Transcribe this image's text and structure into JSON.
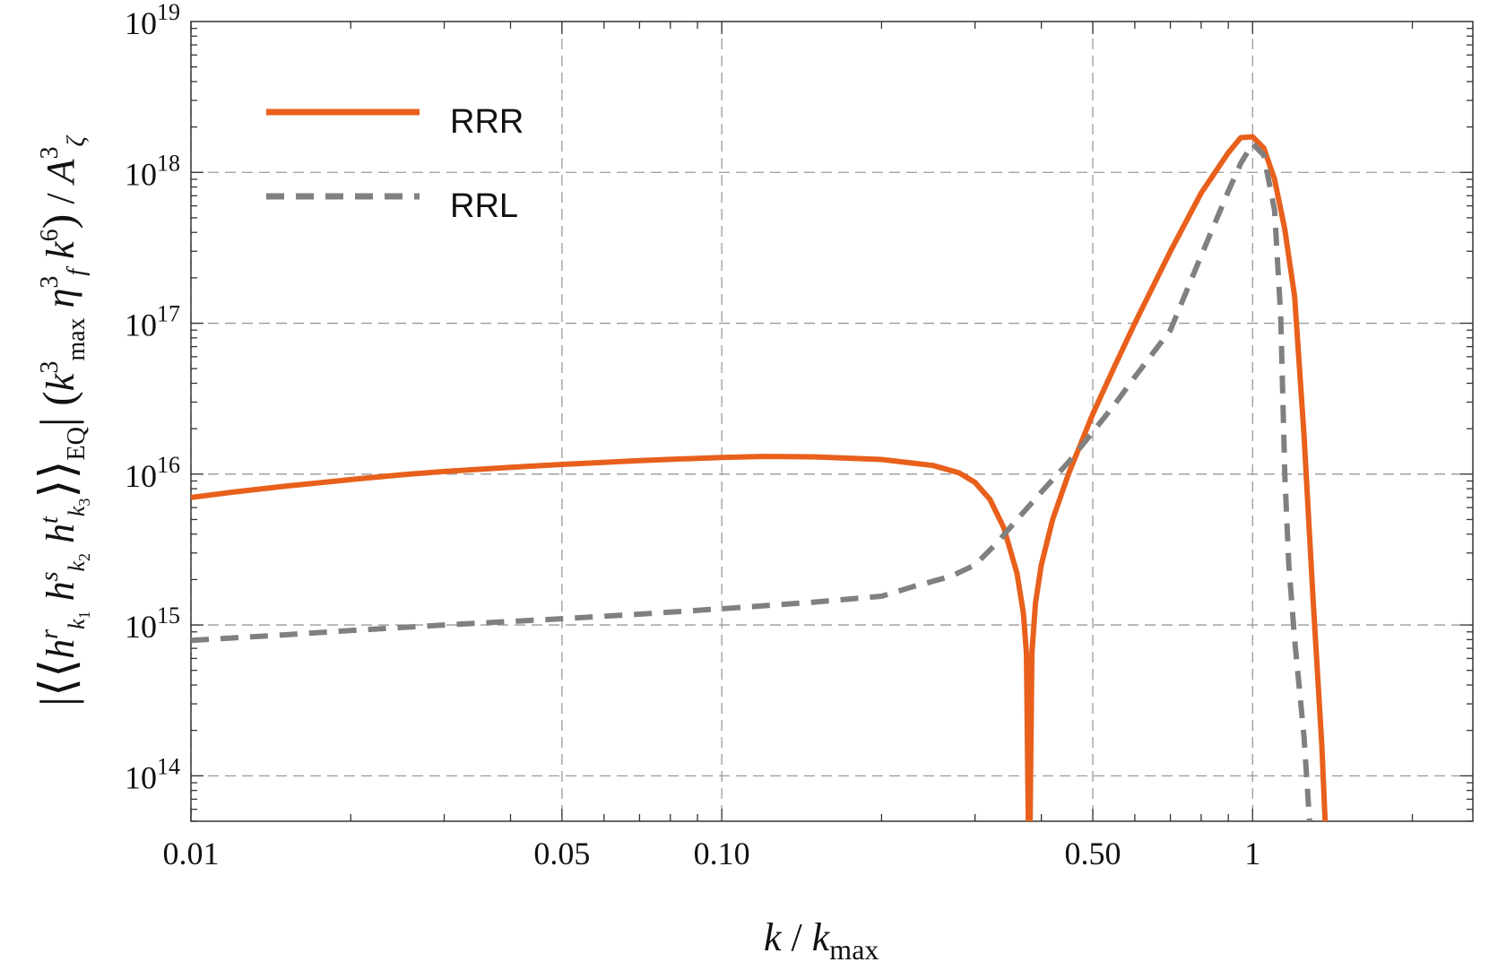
{
  "chart_data": {
    "type": "line",
    "xscale": "log",
    "yscale": "log",
    "xlim": [
      0.01,
      2.6
    ],
    "ylim": [
      50000000000000.0,
      1e+19
    ],
    "grid": true,
    "legend_position": "top-left",
    "xlabel": "k / k_max",
    "ylabel": "|⟨⟨h^r_{k1} h^s_{k2} h^t_{k3}⟩⟩_EQ| (k_max^3 η_f^3 k^6) / A_ζ^3",
    "x_ticks": [
      {
        "value": 0.01,
        "label": "0.01"
      },
      {
        "value": 0.05,
        "label": "0.05"
      },
      {
        "value": 0.1,
        "label": "0.10"
      },
      {
        "value": 0.5,
        "label": "0.50"
      },
      {
        "value": 1,
        "label": "1"
      }
    ],
    "y_ticks": [
      {
        "value": 100000000000000.0,
        "exponent": "14"
      },
      {
        "value": 1000000000000000.0,
        "exponent": "15"
      },
      {
        "value": 1e+16,
        "exponent": "16"
      },
      {
        "value": 1e+17,
        "exponent": "17"
      },
      {
        "value": 1e+18,
        "exponent": "18"
      },
      {
        "value": 1e+19,
        "exponent": "19"
      }
    ],
    "series": [
      {
        "name": "RRR",
        "color": "#e8601c",
        "style": "solid",
        "points": [
          [
            0.01,
            7000000000000000.0
          ],
          [
            0.012,
            7600000000000000.0
          ],
          [
            0.015,
            8300000000000000.0
          ],
          [
            0.02,
            9200000000000000.0
          ],
          [
            0.025,
            9900000000000000.0
          ],
          [
            0.03,
            1.04e+16
          ],
          [
            0.04,
            1.11e+16
          ],
          [
            0.05,
            1.16e+16
          ],
          [
            0.07,
            1.23e+16
          ],
          [
            0.1,
            1.29e+16
          ],
          [
            0.12,
            1.31e+16
          ],
          [
            0.15,
            1.3e+16
          ],
          [
            0.2,
            1.25e+16
          ],
          [
            0.25,
            1.14e+16
          ],
          [
            0.28,
            1.02e+16
          ],
          [
            0.3,
            8800000000000000.0
          ],
          [
            0.32,
            6800000000000000.0
          ],
          [
            0.34,
            4400000000000000.0
          ],
          [
            0.36,
            2200000000000000.0
          ],
          [
            0.37,
            1200000000000000.0
          ],
          [
            0.375,
            650000000000000.0
          ],
          [
            0.378,
            50000000000000.0
          ],
          [
            0.381,
            50000000000000.0
          ],
          [
            0.384,
            650000000000000.0
          ],
          [
            0.39,
            1400000000000000.0
          ],
          [
            0.4,
            2500000000000000.0
          ],
          [
            0.42,
            5000000000000000.0
          ],
          [
            0.45,
            1e+16
          ],
          [
            0.5,
            2.5e+16
          ],
          [
            0.55,
            5.2e+16
          ],
          [
            0.6,
            1e+17
          ],
          [
            0.7,
            3e+17
          ],
          [
            0.8,
            7.3e+17
          ],
          [
            0.9,
            1.35e+18
          ],
          [
            0.95,
            1.7e+18
          ],
          [
            1.0,
            1.72e+18
          ],
          [
            1.05,
            1.45e+18
          ],
          [
            1.1,
            9e+17
          ],
          [
            1.15,
            4.2e+17
          ],
          [
            1.2,
            1.5e+17
          ],
          [
            1.25,
            1.8e+16
          ],
          [
            1.3,
            1500000000000000.0
          ],
          [
            1.35,
            160000000000000.0
          ],
          [
            1.37,
            50000000000000.0
          ]
        ]
      },
      {
        "name": "RRL",
        "color": "#808080",
        "style": "dashed",
        "points": [
          [
            0.01,
            790000000000000.0
          ],
          [
            0.015,
            860000000000000.0
          ],
          [
            0.02,
            920000000000000.0
          ],
          [
            0.03,
            1000000000000000.0
          ],
          [
            0.05,
            1100000000000000.0
          ],
          [
            0.07,
            1180000000000000.0
          ],
          [
            0.1,
            1280000000000000.0
          ],
          [
            0.15,
            1420000000000000.0
          ],
          [
            0.2,
            1550000000000000.0
          ],
          [
            0.23,
            1800000000000000.0
          ],
          [
            0.27,
            2100000000000000.0
          ],
          [
            0.3,
            2500000000000000.0
          ],
          [
            0.33,
            3500000000000000.0
          ],
          [
            0.36,
            5000000000000000.0
          ],
          [
            0.4,
            7600000000000000.0
          ],
          [
            0.45,
            1.2e+16
          ],
          [
            0.5,
            1.9e+16
          ],
          [
            0.55,
            2.9e+16
          ],
          [
            0.6,
            4.4e+16
          ],
          [
            0.7,
            9e+16
          ],
          [
            0.8,
            2.8e+17
          ],
          [
            0.9,
            7.5e+17
          ],
          [
            0.95,
            1.15e+18
          ],
          [
            1.0,
            1.55e+18
          ],
          [
            1.05,
            1.3e+18
          ],
          [
            1.1,
            5.6e+17
          ],
          [
            1.13,
            1.1e+17
          ],
          [
            1.15,
            1e+16
          ],
          [
            1.17,
            2500000000000000.0
          ],
          [
            1.2,
            800000000000000.0
          ],
          [
            1.25,
            180000000000000.0
          ],
          [
            1.28,
            50000000000000.0
          ]
        ]
      }
    ]
  }
}
